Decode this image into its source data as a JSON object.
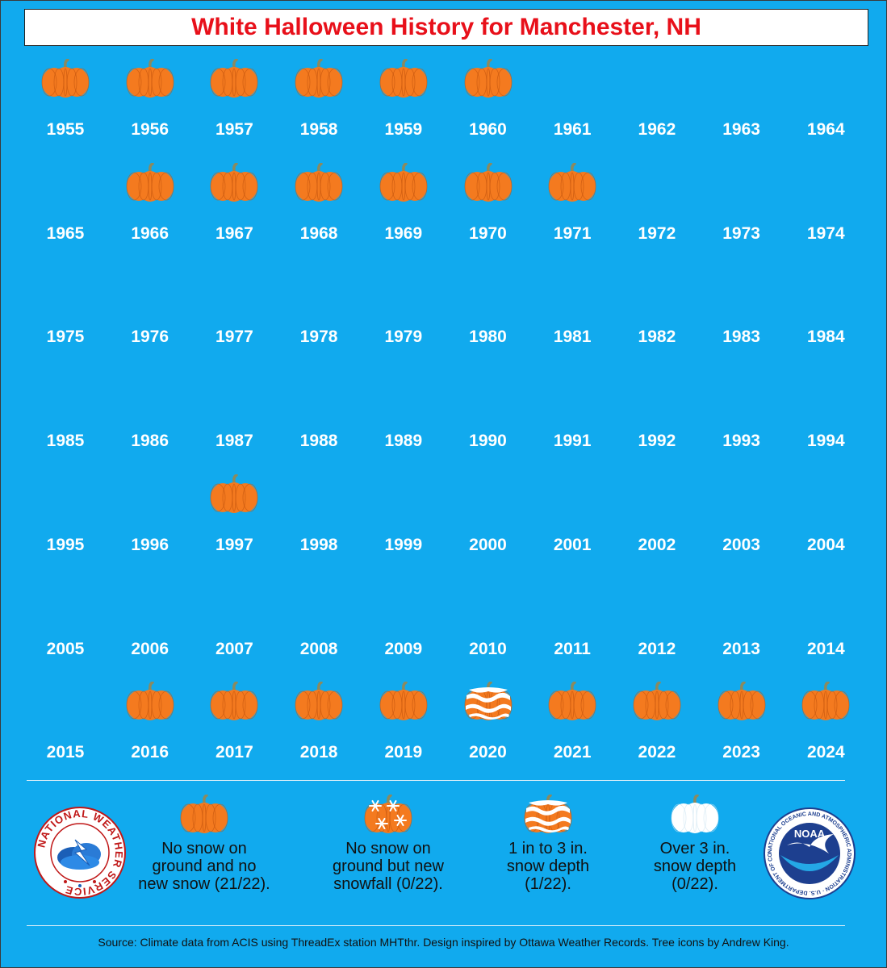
{
  "title": "White Halloween History for Manchester, NH",
  "chart_data": {
    "type": "table",
    "title": "White Halloween History for Manchester, NH",
    "years": [
      [
        1955,
        "none"
      ],
      [
        1956,
        "none"
      ],
      [
        1957,
        "none"
      ],
      [
        1958,
        "none"
      ],
      [
        1959,
        "none"
      ],
      [
        1960,
        "none"
      ],
      [
        1961,
        null
      ],
      [
        1962,
        null
      ],
      [
        1963,
        null
      ],
      [
        1964,
        null
      ],
      [
        1965,
        null
      ],
      [
        1966,
        "none"
      ],
      [
        1967,
        "none"
      ],
      [
        1968,
        "none"
      ],
      [
        1969,
        "none"
      ],
      [
        1970,
        "none"
      ],
      [
        1971,
        "none"
      ],
      [
        1972,
        null
      ],
      [
        1973,
        null
      ],
      [
        1974,
        null
      ],
      [
        1975,
        null
      ],
      [
        1976,
        null
      ],
      [
        1977,
        null
      ],
      [
        1978,
        null
      ],
      [
        1979,
        null
      ],
      [
        1980,
        null
      ],
      [
        1981,
        null
      ],
      [
        1982,
        null
      ],
      [
        1983,
        null
      ],
      [
        1984,
        null
      ],
      [
        1985,
        null
      ],
      [
        1986,
        null
      ],
      [
        1987,
        null
      ],
      [
        1988,
        null
      ],
      [
        1989,
        null
      ],
      [
        1990,
        null
      ],
      [
        1991,
        null
      ],
      [
        1992,
        null
      ],
      [
        1993,
        null
      ],
      [
        1994,
        null
      ],
      [
        1995,
        null
      ],
      [
        1996,
        null
      ],
      [
        1997,
        "none"
      ],
      [
        1998,
        null
      ],
      [
        1999,
        null
      ],
      [
        2000,
        null
      ],
      [
        2001,
        null
      ],
      [
        2002,
        null
      ],
      [
        2003,
        null
      ],
      [
        2004,
        null
      ],
      [
        2005,
        null
      ],
      [
        2006,
        null
      ],
      [
        2007,
        null
      ],
      [
        2008,
        null
      ],
      [
        2009,
        null
      ],
      [
        2010,
        null
      ],
      [
        2011,
        null
      ],
      [
        2012,
        null
      ],
      [
        2013,
        null
      ],
      [
        2014,
        null
      ],
      [
        2015,
        null
      ],
      [
        2016,
        "none"
      ],
      [
        2017,
        "none"
      ],
      [
        2018,
        "none"
      ],
      [
        2019,
        "none"
      ],
      [
        2020,
        "depth_1_3"
      ],
      [
        2021,
        "none"
      ],
      [
        2022,
        "none"
      ],
      [
        2023,
        "none"
      ],
      [
        2024,
        "none"
      ]
    ],
    "categories": [
      "none",
      "new_snowfall",
      "depth_1_3",
      "depth_over_3"
    ],
    "counts": {
      "none": 21,
      "new_snowfall": 0,
      "depth_1_3": 1,
      "depth_over_3": 0
    },
    "total": 22
  },
  "legend": [
    {
      "category": "none",
      "lines": [
        "No snow on",
        "ground and no",
        "new snow (21/22)."
      ]
    },
    {
      "category": "new_snowfall",
      "lines": [
        "No snow on",
        "ground but new",
        "snowfall (0/22)."
      ]
    },
    {
      "category": "depth_1_3",
      "lines": [
        "1 in to 3 in.",
        "snow depth",
        "(1/22)."
      ]
    },
    {
      "category": "depth_over_3",
      "lines": [
        "Over 3 in.",
        "snow depth",
        "(0/22)."
      ]
    }
  ],
  "source": "Source: Climate data from ACIS using ThreadEx station MHTthr. Design inspired by Ottawa Weather Records. Tree icons by Andrew King.",
  "logos": {
    "nws_text": "NATIONAL WEATHER SERVICE",
    "noaa_text": "NOAA",
    "noaa_ring_text": "NATIONAL OCEANIC AND ATMOSPHERIC ADMINISTRATION · U.S. DEPARTMENT OF COMMERCE"
  },
  "colors": {
    "background": "#11aaee",
    "title": "#e8101a",
    "pumpkin": "#f47a1f",
    "pumpkin_ribs": "#c5560e",
    "stem": "#8a8a60",
    "white_pumpkin": "#ffffff"
  }
}
